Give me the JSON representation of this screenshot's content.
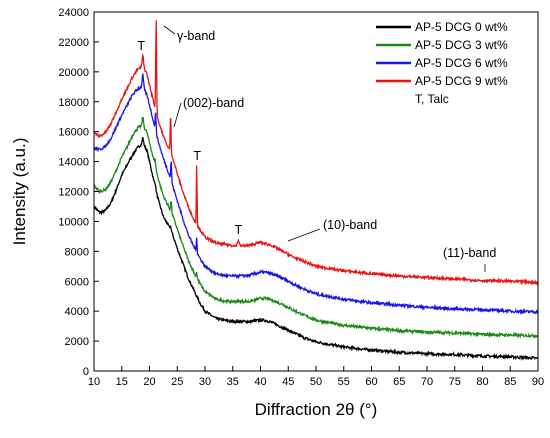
{
  "chart_data": {
    "type": "line",
    "xlabel": "Diffraction 2θ (°)",
    "ylabel": "Intensity (a.u.)",
    "xlim": [
      10,
      90
    ],
    "ylim": [
      0,
      24000
    ],
    "xticks": [
      10,
      15,
      20,
      25,
      30,
      35,
      40,
      45,
      50,
      55,
      60,
      65,
      70,
      75,
      80,
      85,
      90
    ],
    "yticks": [
      0,
      2000,
      4000,
      6000,
      8000,
      10000,
      12000,
      14000,
      16000,
      18000,
      20000,
      22000,
      24000
    ],
    "grid": false,
    "legend_position": "top-right",
    "series": [
      {
        "name": "AP-5 DCG 0 wt%",
        "color": "#000000",
        "x": [
          10,
          11,
          12,
          13,
          14,
          15,
          16,
          17,
          18,
          18.8,
          19.5,
          20.2,
          21,
          21.7,
          22.5,
          23.3,
          24,
          25,
          26,
          27,
          28,
          29,
          30,
          32,
          34,
          36,
          38,
          40,
          41,
          42,
          44,
          46,
          48,
          50,
          55,
          60,
          65,
          70,
          75,
          80,
          85,
          90
        ],
        "y": [
          11000,
          10600,
          10700,
          11200,
          12100,
          13100,
          13800,
          14500,
          15000,
          15200,
          14800,
          13700,
          12300,
          11300,
          10300,
          9800,
          9300,
          8200,
          7200,
          6200,
          5400,
          4600,
          4000,
          3500,
          3350,
          3300,
          3300,
          3400,
          3380,
          3250,
          2900,
          2550,
          2200,
          1950,
          1600,
          1400,
          1250,
          1150,
          1100,
          1000,
          950,
          850
        ]
      },
      {
        "name": "AP-5 DCG 3 wt%",
        "color": "#1a8a1a",
        "x": [
          10,
          11,
          12,
          13,
          14,
          15,
          16,
          17,
          18,
          18.8,
          19.5,
          20.2,
          21,
          21.7,
          22.5,
          23.3,
          24,
          25,
          26,
          27,
          28,
          29,
          30,
          32,
          34,
          36,
          38,
          40,
          41,
          42,
          44,
          46,
          48,
          50,
          55,
          60,
          65,
          70,
          75,
          80,
          85,
          90
        ],
        "y": [
          12400,
          12000,
          12100,
          12600,
          13400,
          14300,
          15000,
          15800,
          16300,
          16400,
          16000,
          15000,
          13700,
          12700,
          11700,
          11100,
          10600,
          9500,
          8400,
          7400,
          6600,
          5900,
          5300,
          4800,
          4650,
          4650,
          4650,
          4850,
          4850,
          4750,
          4450,
          4050,
          3700,
          3400,
          3050,
          2850,
          2700,
          2600,
          2550,
          2450,
          2400,
          2350
        ]
      },
      {
        "name": "AP-5 DCG 6 wt%",
        "color": "#1515e6",
        "x": [
          10,
          11,
          12,
          13,
          14,
          15,
          16,
          17,
          18,
          18.8,
          19.5,
          20.2,
          21,
          21.7,
          22.5,
          23.3,
          24,
          25,
          26,
          27,
          28,
          29,
          30,
          32,
          34,
          36,
          38,
          40,
          41,
          42,
          44,
          46,
          48,
          50,
          55,
          60,
          65,
          70,
          75,
          80,
          85,
          90
        ],
        "y": [
          14900,
          14800,
          15000,
          15500,
          16300,
          17100,
          17800,
          18500,
          18900,
          19000,
          18500,
          17500,
          16200,
          15200,
          14200,
          13400,
          12600,
          11400,
          10200,
          9100,
          8300,
          7600,
          7000,
          6500,
          6350,
          6350,
          6400,
          6600,
          6600,
          6500,
          6200,
          5800,
          5450,
          5150,
          4800,
          4550,
          4400,
          4250,
          4150,
          4100,
          4000,
          3950
        ]
      },
      {
        "name": "AP-5 DCG 9 wt%",
        "color": "#e61515",
        "x": [
          10,
          11,
          12,
          13,
          14,
          15,
          16,
          17,
          18,
          18.8,
          19.5,
          20.2,
          21,
          21.7,
          22.5,
          23.3,
          24,
          25,
          26,
          27,
          28,
          29,
          30,
          32,
          34,
          36,
          38,
          40,
          41,
          42,
          44,
          46,
          48,
          50,
          55,
          60,
          65,
          70,
          75,
          80,
          85,
          90
        ],
        "y": [
          15900,
          15700,
          15900,
          16500,
          17300,
          18200,
          18900,
          19700,
          20200,
          20400,
          19900,
          18800,
          17600,
          16600,
          15700,
          15000,
          14500,
          13200,
          12000,
          11000,
          10100,
          9500,
          8950,
          8550,
          8450,
          8350,
          8400,
          8600,
          8500,
          8400,
          8000,
          7600,
          7300,
          7000,
          6700,
          6500,
          6350,
          6250,
          6150,
          6050,
          6000,
          5900
        ]
      }
    ],
    "annotations": [
      "T",
      "γ-band",
      "(002)-band",
      "T",
      "T",
      "(10)-band",
      "(11)-band"
    ],
    "legend_note": "T, Talc"
  }
}
